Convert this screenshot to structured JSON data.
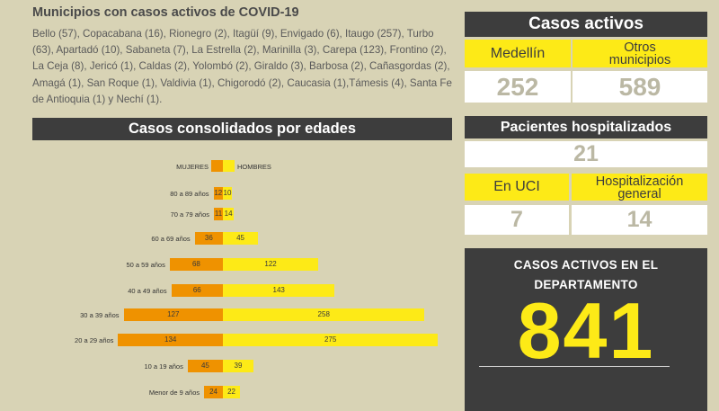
{
  "municipios": {
    "title": "Municipios con casos activos de COVID-19",
    "text": "Bello (57), Copacabana (16), Rionegro (2), Itagüí (9), Envigado (6), Itaugo (257), Turbo (63), Apartadó (10), Sabaneta (7), La Estrella (2), Marinilla (3), Carepa (123), Frontino (2), La Ceja (8), Jericó (1), Caldas (2), Yolombó (2), Giraldo (3), Barbosa (2), Cañasgordas (2), Amagá (1), San Roque (1), Valdivia (1), Chigorodó (2), Caucasia (1),Támesis (4), Santa Fe de Antioquia (1) y  Nechí (1)."
  },
  "colors": {
    "female": "#ef9200",
    "male": "#fdea17",
    "dark": "#3d3d3d",
    "background": "#d8d3b5"
  },
  "chart_data": {
    "type": "bar",
    "title": "Casos consolidados por edades",
    "legend": [
      "MUJERES",
      "HOMBRES"
    ],
    "categories": [
      "80 a 89 años",
      "70 a 79 años",
      "60 a 69 años",
      "50 a 59 años",
      "40 a 49 años",
      "30 a 39 años",
      "20 a 29 años",
      "10 a 19 años",
      "Menor de 9 años"
    ],
    "series": [
      {
        "name": "MUJERES",
        "values": [
          12,
          11,
          36,
          68,
          66,
          127,
          134,
          45,
          24
        ]
      },
      {
        "name": "HOMBRES",
        "values": [
          10,
          14,
          45,
          122,
          143,
          258,
          275,
          39,
          22
        ]
      }
    ]
  },
  "casos_activos": {
    "title": "Casos activos",
    "medellin_label": "Medellín",
    "otros_label_1": "Otros",
    "otros_label_2": "municipios",
    "medellin_value": "252",
    "otros_value": "589"
  },
  "hospitalizados": {
    "title": "Pacientes hospitalizados",
    "total": "21",
    "uci_label": "En UCI",
    "hg_label_1": "Hospitalización",
    "hg_label_2": "general",
    "uci_value": "7",
    "hg_value": "14"
  },
  "departamento": {
    "title_1": "CASOS ACTIVOS EN EL",
    "title_2": "DEPARTAMENTO",
    "value": "841"
  }
}
